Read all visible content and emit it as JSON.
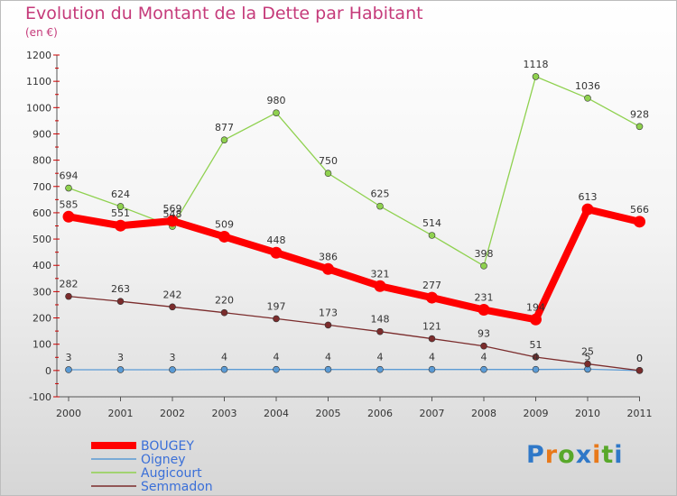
{
  "chart_data": {
    "type": "line",
    "title": "Evolution du Montant de la Dette par Habitant",
    "subtitle": "(en €)",
    "x": [
      "2000",
      "2001",
      "2002",
      "2003",
      "2004",
      "2005",
      "2006",
      "2007",
      "2008",
      "2009",
      "2010",
      "2011"
    ],
    "ylim": [
      -100,
      1200
    ],
    "yticks": [
      -100,
      0,
      100,
      200,
      300,
      400,
      500,
      600,
      700,
      800,
      900,
      1000,
      1100,
      1200
    ],
    "grid": false,
    "legend": "bottom-left",
    "series": [
      {
        "name": "BOUGEY",
        "color": "#ff0000",
        "values": [
          585,
          551,
          569,
          509,
          448,
          386,
          321,
          277,
          231,
          194,
          613,
          566
        ],
        "labels": [
          "585",
          "551",
          "569",
          "509",
          "448",
          "386",
          "321",
          "277",
          "231",
          "194",
          "613",
          "566"
        ]
      },
      {
        "name": "Oigney",
        "color": "#5b9bd5",
        "values": [
          3,
          3,
          3,
          4,
          4,
          4,
          4,
          4,
          4,
          4,
          5,
          0
        ],
        "labels": [
          "3",
          "3",
          "3",
          "4",
          "4",
          "4",
          "4",
          "4",
          "4",
          "4",
          "5",
          "0"
        ]
      },
      {
        "name": "Augicourt",
        "color": "#8fd14f",
        "values": [
          694,
          624,
          548,
          877,
          980,
          750,
          625,
          514,
          398,
          1118,
          1036,
          928
        ],
        "labels": [
          "694",
          "624",
          "548",
          "877",
          "980",
          "750",
          "625",
          "514",
          "398",
          "1118",
          "1036",
          "928"
        ]
      },
      {
        "name": "Semmadon",
        "color": "#7b2c2c",
        "values": [
          282,
          263,
          242,
          220,
          197,
          173,
          148,
          121,
          93,
          51,
          25,
          0
        ],
        "labels": [
          "282",
          "263",
          "242",
          "220",
          "197",
          "173",
          "148",
          "121",
          "93",
          "51",
          "25",
          "0"
        ]
      }
    ]
  },
  "logo": {
    "letters": [
      "P",
      "r",
      "o",
      "x",
      "i",
      "t",
      "i"
    ]
  }
}
